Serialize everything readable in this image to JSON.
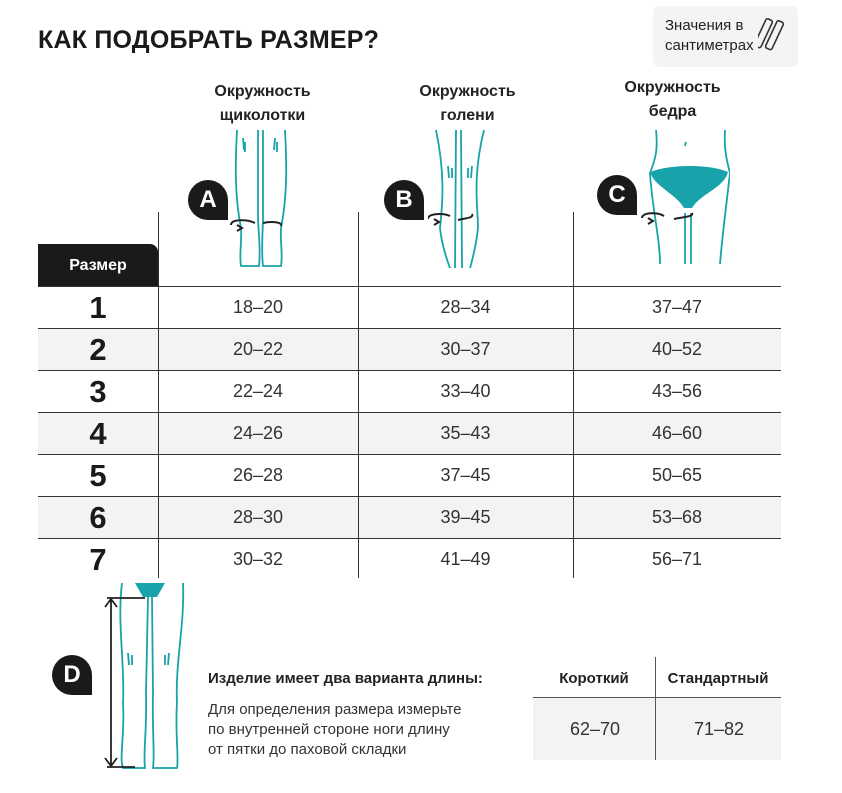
{
  "title": "КАК ПОДОБРАТЬ РАЗМЕР?",
  "unit_note": {
    "line1": "Значения в",
    "line2": "сантиметрах",
    "icon": "measuring-tape-icon"
  },
  "accent_color": "#17a3a9",
  "columns": [
    {
      "badge": "A",
      "line1": "Окружность",
      "line2": "щиколотки"
    },
    {
      "badge": "B",
      "line1": "Окружность",
      "line2": "голени"
    },
    {
      "badge": "C",
      "line1": "Окружность",
      "line2": "бедра"
    }
  ],
  "size_header": "Размер",
  "rows": [
    {
      "size": "1",
      "a": "18–20",
      "b": "28–34",
      "c": "37–47"
    },
    {
      "size": "2",
      "a": "20–22",
      "b": "30–37",
      "c": "40–52"
    },
    {
      "size": "3",
      "a": "22–24",
      "b": "33–40",
      "c": "43–56"
    },
    {
      "size": "4",
      "a": "24–26",
      "b": "35–43",
      "c": "46–60"
    },
    {
      "size": "5",
      "a": "26–28",
      "b": "37–45",
      "c": "50–65"
    },
    {
      "size": "6",
      "a": "28–30",
      "b": "39–45",
      "c": "53–68"
    },
    {
      "size": "7",
      "a": "30–32",
      "b": "41–49",
      "c": "56–71"
    }
  ],
  "length": {
    "badge": "D",
    "heading": "Изделие имеет два варианта длины:",
    "text_lines": [
      "Для определения размера измерьте",
      "по внутренней стороне ноги длину",
      "от пятки до паховой складки"
    ],
    "short_label": "Короткий",
    "short_value": "62–70",
    "standard_label": "Стандартный",
    "standard_value": "71–82"
  }
}
